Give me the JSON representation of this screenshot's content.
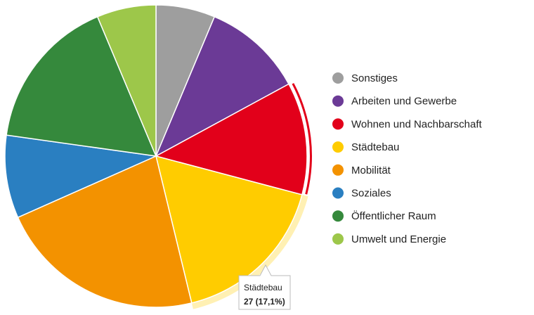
{
  "chart_data": {
    "type": "pie",
    "categories": [
      "Sonstiges",
      "Arbeiten und Gewerbe",
      "Wohnen und Nachbarschaft",
      "Städtebau",
      "Mobilität",
      "Soziales",
      "Öffentlicher Raum",
      "Umwelt und Energie"
    ],
    "values": [
      10,
      17,
      19,
      27,
      35,
      14,
      26,
      10
    ],
    "colors": [
      "#9e9e9e",
      "#6b3a96",
      "#e2001a",
      "#ffcc00",
      "#f39200",
      "#2a7fc1",
      "#35893c",
      "#9dc74a"
    ],
    "tooltip": {
      "label": "27 (17,1%)"
    }
  }
}
